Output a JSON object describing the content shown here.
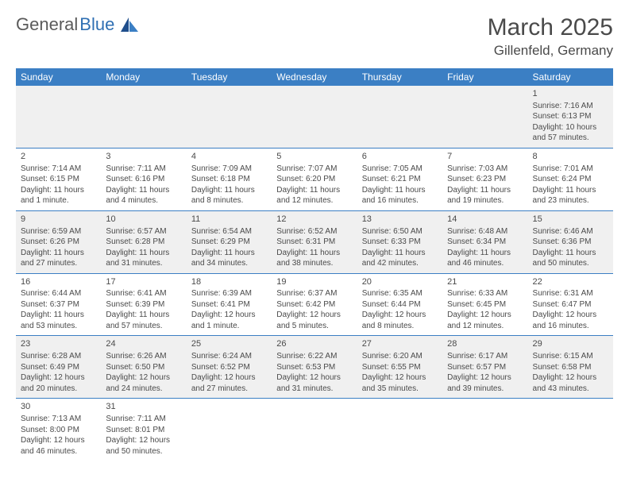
{
  "logo": {
    "text1": "General",
    "text2": "Blue"
  },
  "title": "March 2025",
  "location": "Gillenfeld, Germany",
  "colors": {
    "header_bg": "#3b7fc4",
    "header_text": "#ffffff",
    "row_alt_bg": "#f0f0f0",
    "border": "#3b7fc4",
    "text": "#4a4a4a",
    "logo_gray": "#5a5a5a",
    "logo_blue": "#2f6fb3"
  },
  "days": [
    "Sunday",
    "Monday",
    "Tuesday",
    "Wednesday",
    "Thursday",
    "Friday",
    "Saturday"
  ],
  "weeks": [
    [
      null,
      null,
      null,
      null,
      null,
      null,
      {
        "n": "1",
        "sr": "7:16 AM",
        "ss": "6:13 PM",
        "dl": "10 hours and 57 minutes."
      }
    ],
    [
      {
        "n": "2",
        "sr": "7:14 AM",
        "ss": "6:15 PM",
        "dl": "11 hours and 1 minute."
      },
      {
        "n": "3",
        "sr": "7:11 AM",
        "ss": "6:16 PM",
        "dl": "11 hours and 4 minutes."
      },
      {
        "n": "4",
        "sr": "7:09 AM",
        "ss": "6:18 PM",
        "dl": "11 hours and 8 minutes."
      },
      {
        "n": "5",
        "sr": "7:07 AM",
        "ss": "6:20 PM",
        "dl": "11 hours and 12 minutes."
      },
      {
        "n": "6",
        "sr": "7:05 AM",
        "ss": "6:21 PM",
        "dl": "11 hours and 16 minutes."
      },
      {
        "n": "7",
        "sr": "7:03 AM",
        "ss": "6:23 PM",
        "dl": "11 hours and 19 minutes."
      },
      {
        "n": "8",
        "sr": "7:01 AM",
        "ss": "6:24 PM",
        "dl": "11 hours and 23 minutes."
      }
    ],
    [
      {
        "n": "9",
        "sr": "6:59 AM",
        "ss": "6:26 PM",
        "dl": "11 hours and 27 minutes."
      },
      {
        "n": "10",
        "sr": "6:57 AM",
        "ss": "6:28 PM",
        "dl": "11 hours and 31 minutes."
      },
      {
        "n": "11",
        "sr": "6:54 AM",
        "ss": "6:29 PM",
        "dl": "11 hours and 34 minutes."
      },
      {
        "n": "12",
        "sr": "6:52 AM",
        "ss": "6:31 PM",
        "dl": "11 hours and 38 minutes."
      },
      {
        "n": "13",
        "sr": "6:50 AM",
        "ss": "6:33 PM",
        "dl": "11 hours and 42 minutes."
      },
      {
        "n": "14",
        "sr": "6:48 AM",
        "ss": "6:34 PM",
        "dl": "11 hours and 46 minutes."
      },
      {
        "n": "15",
        "sr": "6:46 AM",
        "ss": "6:36 PM",
        "dl": "11 hours and 50 minutes."
      }
    ],
    [
      {
        "n": "16",
        "sr": "6:44 AM",
        "ss": "6:37 PM",
        "dl": "11 hours and 53 minutes."
      },
      {
        "n": "17",
        "sr": "6:41 AM",
        "ss": "6:39 PM",
        "dl": "11 hours and 57 minutes."
      },
      {
        "n": "18",
        "sr": "6:39 AM",
        "ss": "6:41 PM",
        "dl": "12 hours and 1 minute."
      },
      {
        "n": "19",
        "sr": "6:37 AM",
        "ss": "6:42 PM",
        "dl": "12 hours and 5 minutes."
      },
      {
        "n": "20",
        "sr": "6:35 AM",
        "ss": "6:44 PM",
        "dl": "12 hours and 8 minutes."
      },
      {
        "n": "21",
        "sr": "6:33 AM",
        "ss": "6:45 PM",
        "dl": "12 hours and 12 minutes."
      },
      {
        "n": "22",
        "sr": "6:31 AM",
        "ss": "6:47 PM",
        "dl": "12 hours and 16 minutes."
      }
    ],
    [
      {
        "n": "23",
        "sr": "6:28 AM",
        "ss": "6:49 PM",
        "dl": "12 hours and 20 minutes."
      },
      {
        "n": "24",
        "sr": "6:26 AM",
        "ss": "6:50 PM",
        "dl": "12 hours and 24 minutes."
      },
      {
        "n": "25",
        "sr": "6:24 AM",
        "ss": "6:52 PM",
        "dl": "12 hours and 27 minutes."
      },
      {
        "n": "26",
        "sr": "6:22 AM",
        "ss": "6:53 PM",
        "dl": "12 hours and 31 minutes."
      },
      {
        "n": "27",
        "sr": "6:20 AM",
        "ss": "6:55 PM",
        "dl": "12 hours and 35 minutes."
      },
      {
        "n": "28",
        "sr": "6:17 AM",
        "ss": "6:57 PM",
        "dl": "12 hours and 39 minutes."
      },
      {
        "n": "29",
        "sr": "6:15 AM",
        "ss": "6:58 PM",
        "dl": "12 hours and 43 minutes."
      }
    ],
    [
      {
        "n": "30",
        "sr": "7:13 AM",
        "ss": "8:00 PM",
        "dl": "12 hours and 46 minutes."
      },
      {
        "n": "31",
        "sr": "7:11 AM",
        "ss": "8:01 PM",
        "dl": "12 hours and 50 minutes."
      },
      null,
      null,
      null,
      null,
      null
    ]
  ],
  "labels": {
    "sunrise": "Sunrise: ",
    "sunset": "Sunset: ",
    "daylight": "Daylight: "
  }
}
